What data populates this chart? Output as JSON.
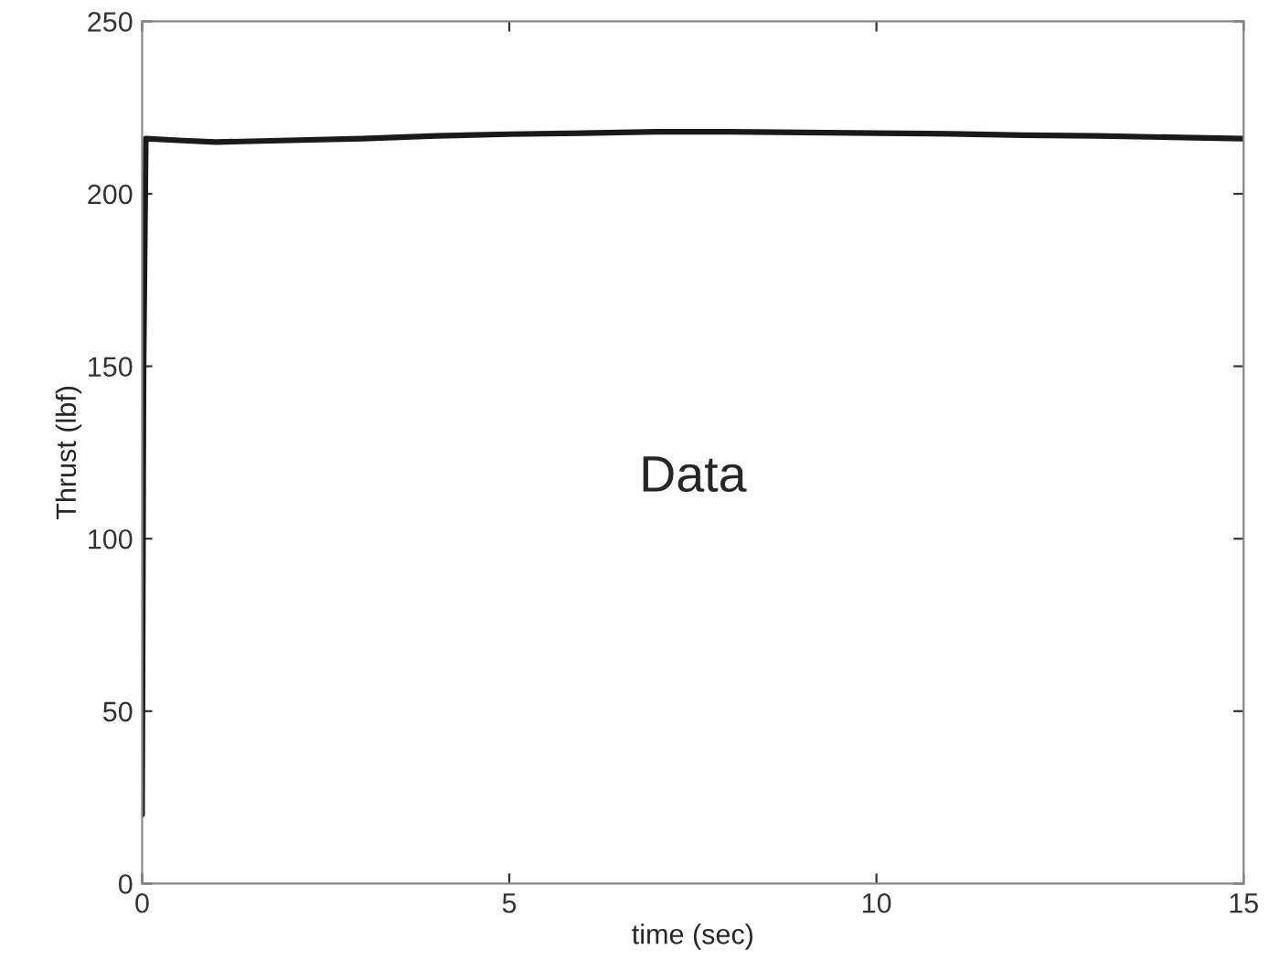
{
  "chart_data": {
    "type": "line",
    "xlabel": "time (sec)",
    "ylabel": "Thrust (lbf)",
    "x": [
      0,
      0.02,
      0.05,
      0.5,
      1,
      2,
      3,
      4,
      5,
      6,
      7,
      8,
      9,
      10,
      11,
      12,
      13,
      14,
      15
    ],
    "series": [
      {
        "color": "#1a1a1a",
        "values": [
          20,
          150,
          216,
          215.5,
          215,
          215.5,
          216,
          216.8,
          217.3,
          217.6,
          218,
          218,
          217.8,
          217.6,
          217.4,
          217,
          216.8,
          216.4,
          216
        ]
      }
    ],
    "xlim": [
      0,
      15
    ],
    "xticks": [
      0,
      5,
      10,
      15
    ],
    "ylim": [
      0,
      250
    ],
    "yticks": [
      0,
      50,
      100,
      150,
      200,
      250
    ],
    "grid": false,
    "line_style": "solid",
    "marker": "none",
    "annotations": [
      "Data"
    ]
  }
}
